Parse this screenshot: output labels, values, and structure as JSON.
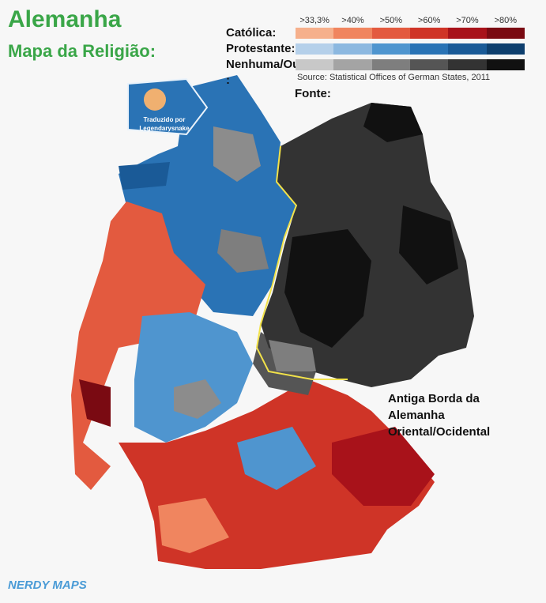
{
  "title": "Alemanha",
  "subtitle": "Mapa da Religião:",
  "legend": {
    "thresholds": [
      ">33,3%",
      ">40%",
      ">50%",
      ">60%",
      ">70%",
      ">80%"
    ],
    "rows": [
      {
        "label": "Católica:",
        "colors": [
          "#f6b08c",
          "#f0855f",
          "#e35a3f",
          "#cf3427",
          "#a8121a",
          "#7a0a12"
        ]
      },
      {
        "label": "Protestante:",
        "colors": [
          "#b5d0ea",
          "#8cb8e0",
          "#4f95cf",
          "#2a73b5",
          "#1a5a97",
          "#0e3f6e"
        ]
      },
      {
        "label": "Nenhuma/Outra",
        "colors": [
          "#c8c8c8",
          "#a4a4a4",
          "#7e7e7e",
          "#555555",
          "#333333",
          "#111111"
        ]
      }
    ],
    "colon_fragment": ":"
  },
  "source": "Source: Statistical Offices of German States, 2011",
  "source_label": "Fonte:",
  "border_annotation": [
    "Antiga Borda da",
    "Alemanha",
    "Oriental/Ocidental"
  ],
  "translator_badge": [
    "Traduzido por",
    "Legendarysnake"
  ],
  "brand": "NERDY MAPS",
  "colors": {
    "border_line": "#f2e24a",
    "title": "#3aa648"
  }
}
